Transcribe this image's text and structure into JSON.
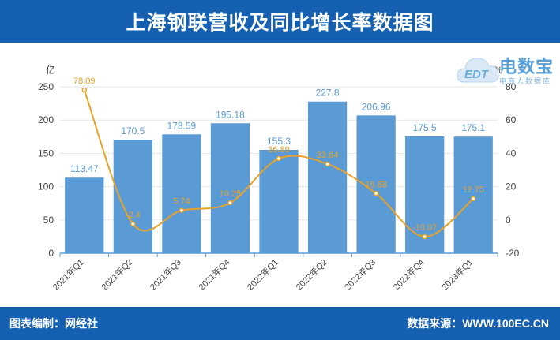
{
  "header": {
    "title": "上海钢联营收及同比增长率数据图"
  },
  "footer": {
    "left_text": "图表编制：网经社",
    "right_text": "数据来源：WWW.100EC.CN"
  },
  "watermark": {
    "brand": "电数宝",
    "sub": "电商大数据库",
    "badge": "EDT"
  },
  "colors": {
    "bar": "#5b9bd5",
    "line": "#e8a228",
    "bar_label": "#5b9bd5",
    "line_label": "#e8a228",
    "header_bg": "#1560b0"
  },
  "chart_data": {
    "type": "bar",
    "categories": [
      "2021年Q1",
      "2021年Q2",
      "2021年Q3",
      "2021年Q4",
      "2022年Q1",
      "2022年Q2",
      "2022年Q3",
      "2022年Q4",
      "2023年Q1"
    ],
    "series": [
      {
        "type": "bar",
        "axis": "left",
        "values": [
          113.47,
          170.5,
          178.59,
          195.18,
          155.3,
          227.8,
          206.96,
          175.5,
          175.1
        ]
      },
      {
        "type": "line",
        "axis": "right",
        "smooth": true,
        "values": [
          78.09,
          -2.4,
          5.74,
          10.25,
          36.89,
          33.64,
          15.88,
          -10.07,
          12.75
        ]
      }
    ],
    "y_left": {
      "unit_label": "亿",
      "ylim": [
        0,
        250
      ],
      "ticks": [
        0,
        50,
        100,
        150,
        200,
        250
      ]
    },
    "y_right": {
      "unit_label": "%",
      "ylim": [
        -20,
        80
      ],
      "ticks": [
        -20,
        0,
        20,
        40,
        60,
        80
      ]
    },
    "grid": true
  }
}
